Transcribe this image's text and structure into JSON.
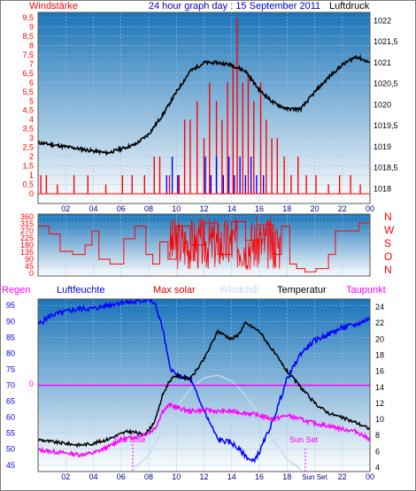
{
  "header": {
    "left_label": "Windstärke",
    "title": "24 hour graph day : 15 September 2011",
    "right_label": "Luftdruck"
  },
  "colors": {
    "panel_top": "#1a74b8",
    "panel_bottom": "#ffffff",
    "frame": "#7a7a7a",
    "wind_speed": "#ff0000",
    "wind_gust": "#0000ff",
    "pressure": "#000000",
    "direction": "#ff0000",
    "humidity": "#0000ff",
    "temperature": "#000000",
    "dewpoint": "#ff00ff",
    "windchill": "#c7d6ec",
    "rain": "#ff00ff",
    "rain_text": "#ff00ff",
    "humidity_text": "#0000cc",
    "maxsolar_text": "#cc0000",
    "windchill_text": "#c7d6ec",
    "temperature_text": "#000000",
    "dewpoint_text": "#ff00ff",
    "left_axis_text": "#ff0000",
    "humidity_axis_text": "#0000ff",
    "dir_axis_text": "#ff0000",
    "direction_letters_text": "#ff0000",
    "black": "#000000"
  },
  "x_axis": {
    "ticks": [
      "02",
      "04",
      "06",
      "08",
      "10",
      "12",
      "14",
      "16",
      "18",
      "20",
      "22",
      "00"
    ]
  },
  "legend": {
    "rain": "Regen",
    "humidity": "Luftfeuchte",
    "max_solar": "Max solar",
    "windchill": "Windchill",
    "temperature": "Temperatur",
    "dewpoint": "Taupunkt"
  },
  "direction_letters": [
    "N",
    "W",
    "S",
    "O",
    "N"
  ],
  "annotations": {
    "sunrise": "Sun Rise",
    "sunset": "Sun Set",
    "sunset_tick": "Sun Set",
    "rain_zero": "0"
  },
  "chart_data": [
    {
      "type": "line",
      "title": "24 hour graph day : 15 September 2011",
      "left_axis": {
        "label": "Windstärke",
        "ticks": [
          "0",
          "0,5",
          "1",
          "1,5",
          "2",
          "2,5",
          "3",
          "3,5",
          "4",
          "4,5",
          "5",
          "5,5",
          "6",
          "6,5",
          "7",
          "7,5",
          "8",
          "8,5",
          "9",
          "9,5"
        ],
        "ylim": [
          0,
          9.5
        ]
      },
      "right_axis": {
        "label": "Luftdruck",
        "ticks": [
          "1018",
          "1018,5",
          "1019",
          "1019,5",
          "1020",
          "1020,5",
          "1021",
          "1021,5",
          "1022"
        ],
        "ylim": [
          1017.65,
          1022.2
        ]
      },
      "x": {
        "start": 0,
        "end": 24,
        "ticks": [
          "02",
          "04",
          "06",
          "08",
          "10",
          "12",
          "14",
          "16",
          "18",
          "20",
          "22",
          "00"
        ]
      },
      "series": [
        {
          "name": "Luftdruck",
          "axis": "right",
          "x": [
            0,
            1,
            2,
            3,
            4,
            5,
            6,
            7,
            8,
            9,
            10,
            11,
            12,
            13,
            14,
            15,
            16,
            17,
            18,
            19,
            20,
            21,
            22,
            23,
            24
          ],
          "values": [
            1019.1,
            1019.05,
            1019.0,
            1018.95,
            1018.9,
            1018.85,
            1018.95,
            1019.05,
            1019.3,
            1019.75,
            1020.3,
            1020.8,
            1021.0,
            1021.0,
            1020.95,
            1020.8,
            1020.35,
            1020.05,
            1019.9,
            1019.9,
            1020.3,
            1020.65,
            1020.95,
            1021.15,
            1021.0
          ]
        },
        {
          "name": "Windstärke",
          "axis": "left",
          "render": "bars",
          "x": [
            0.2,
            0.6,
            1.4,
            2.6,
            3.6,
            4.9,
            6.1,
            6.8,
            7.7,
            8.4,
            8.8,
            9.5,
            10.2,
            10.6,
            11.0,
            11.5,
            12.0,
            12.4,
            12.9,
            13.3,
            13.7,
            14.1,
            14.4,
            14.8,
            15.2,
            15.6,
            16.1,
            16.5,
            16.9,
            17.3,
            17.8,
            18.3,
            18.8,
            19.4,
            20.1,
            21.0,
            21.8,
            22.6,
            23.3
          ],
          "values": [
            1,
            1,
            0.5,
            1,
            1,
            0.5,
            1,
            1,
            1,
            2,
            2,
            1,
            1,
            4,
            4,
            5,
            3,
            6,
            5,
            4,
            6,
            7,
            9.5,
            6,
            6.5,
            5,
            6,
            4,
            3,
            3,
            2,
            1,
            2,
            1,
            1,
            0.5,
            1,
            1,
            0.5
          ]
        },
        {
          "name": "Böen",
          "axis": "left",
          "render": "bars",
          "x": [
            9.3,
            9.7,
            10.1,
            12.1,
            12.5,
            12.9,
            13.4,
            13.8,
            14.2,
            14.6,
            15.0,
            15.4,
            15.8,
            16.3
          ],
          "values": [
            1,
            2,
            1,
            2,
            1,
            2,
            1,
            2,
            1,
            2,
            1,
            2,
            1,
            1
          ]
        }
      ]
    },
    {
      "type": "line",
      "left_axis": {
        "ticks": [
          "0",
          "45",
          "90",
          "135",
          "180",
          "225",
          "270",
          "315",
          "360"
        ],
        "ylim": [
          0,
          360
        ]
      },
      "right_axis": {
        "ticks": [
          "N",
          "W",
          "S",
          "O",
          "N"
        ]
      },
      "x": {
        "start": 0,
        "end": 24,
        "ticks": [
          "02",
          "04",
          "06",
          "08",
          "10",
          "12",
          "14",
          "16",
          "18",
          "20",
          "22",
          "00"
        ]
      },
      "series": [
        {
          "name": "Windrichtung",
          "x": [
            0,
            0.8,
            1.6,
            2.5,
            3.4,
            3.9,
            4.4,
            5.2,
            6.2,
            7.0,
            7.8,
            8.3,
            8.8,
            9.4,
            10.0,
            11.0,
            12.0,
            13.0,
            14.0,
            15.0,
            16.0,
            17.0,
            17.6,
            18.2,
            18.7,
            19.3,
            20.1,
            21.0,
            21.5,
            22.4,
            23.2,
            24.0
          ],
          "values": [
            300,
            250,
            140,
            120,
            180,
            270,
            90,
            60,
            220,
            300,
            120,
            60,
            200,
            90,
            300,
            180,
            320,
            120,
            330,
            210,
            310,
            120,
            300,
            60,
            30,
            10,
            30,
            120,
            270,
            270,
            320,
            270
          ]
        }
      ]
    },
    {
      "type": "line",
      "left_axis": {
        "label": "Luftfeuchte",
        "ticks": [
          "45",
          "50",
          "55",
          "60",
          "65",
          "70",
          "75",
          "80",
          "85",
          "90",
          "95"
        ],
        "ylim": [
          43,
          97
        ]
      },
      "right_axis": {
        "label": "Temperatur",
        "ticks": [
          "4",
          "6",
          "8",
          "10",
          "12",
          "14",
          "16",
          "18",
          "20",
          "22",
          "24"
        ],
        "ylim": [
          3.5,
          25
        ]
      },
      "x": {
        "start": 0,
        "end": 24,
        "ticks": [
          "02",
          "04",
          "06",
          "08",
          "10",
          "12",
          "14",
          "16",
          "18",
          "20",
          "22",
          "00"
        ]
      },
      "series": [
        {
          "name": "Luftfeuchte",
          "axis": "left",
          "x": [
            0,
            1,
            2,
            3,
            4,
            5,
            6,
            7,
            8,
            8.5,
            9,
            9.5,
            10,
            11,
            12,
            13,
            14,
            14.5,
            15,
            15.5,
            16,
            17,
            18,
            19,
            20,
            21,
            22,
            23,
            24
          ],
          "values": [
            89,
            92,
            93,
            94,
            94,
            95,
            96,
            96,
            97,
            95,
            88,
            76,
            73,
            72,
            62,
            53,
            52,
            50,
            48,
            46,
            49,
            59,
            72,
            80,
            84,
            86,
            88,
            89,
            91
          ]
        },
        {
          "name": "Temperatur",
          "axis": "right",
          "x": [
            0,
            1,
            2,
            3,
            4,
            5,
            6,
            6.5,
            7,
            7.5,
            8,
            8.5,
            9,
            9.5,
            10,
            11,
            12,
            13,
            14,
            14.5,
            15,
            15.5,
            16,
            17,
            18,
            19,
            20,
            21,
            22,
            23,
            24
          ],
          "values": [
            7.5,
            7.2,
            7.0,
            6.8,
            7.0,
            7.5,
            8.2,
            8.5,
            8.4,
            8.1,
            8.6,
            10.0,
            13.0,
            14.8,
            15.5,
            15.0,
            17.5,
            21.0,
            20.0,
            20.6,
            22.0,
            21.5,
            21.0,
            18.5,
            16.0,
            14.0,
            12.0,
            10.8,
            10.2,
            9.6,
            8.8
          ]
        },
        {
          "name": "Taupunkt",
          "axis": "right",
          "x": [
            0,
            1,
            2,
            3,
            4,
            5,
            6,
            7,
            8,
            8.5,
            9,
            9.5,
            10,
            11,
            12,
            13,
            14,
            15,
            16,
            17,
            18,
            19,
            20,
            21,
            22,
            23,
            24
          ],
          "values": [
            6.2,
            6.0,
            5.8,
            5.6,
            5.8,
            6.5,
            7.5,
            7.8,
            8.3,
            9.0,
            11.0,
            11.8,
            11.5,
            11.0,
            11.2,
            11.0,
            11.0,
            10.8,
            10.5,
            10.0,
            10.5,
            10.0,
            9.5,
            9.2,
            8.8,
            8.5,
            7.5
          ]
        },
        {
          "name": "Max solar",
          "axis": "right",
          "x": [
            7,
            8,
            9,
            10,
            11,
            12,
            13,
            14,
            15,
            16,
            17,
            18,
            19
          ],
          "values": [
            4,
            5.5,
            8.5,
            11.5,
            13.8,
            15.2,
            15.5,
            14.8,
            13.0,
            10.5,
            7.5,
            5.0,
            3.8
          ]
        },
        {
          "name": "Regen",
          "axis": "left",
          "x": [
            0,
            24
          ],
          "values": [
            70,
            70
          ]
        }
      ]
    }
  ]
}
